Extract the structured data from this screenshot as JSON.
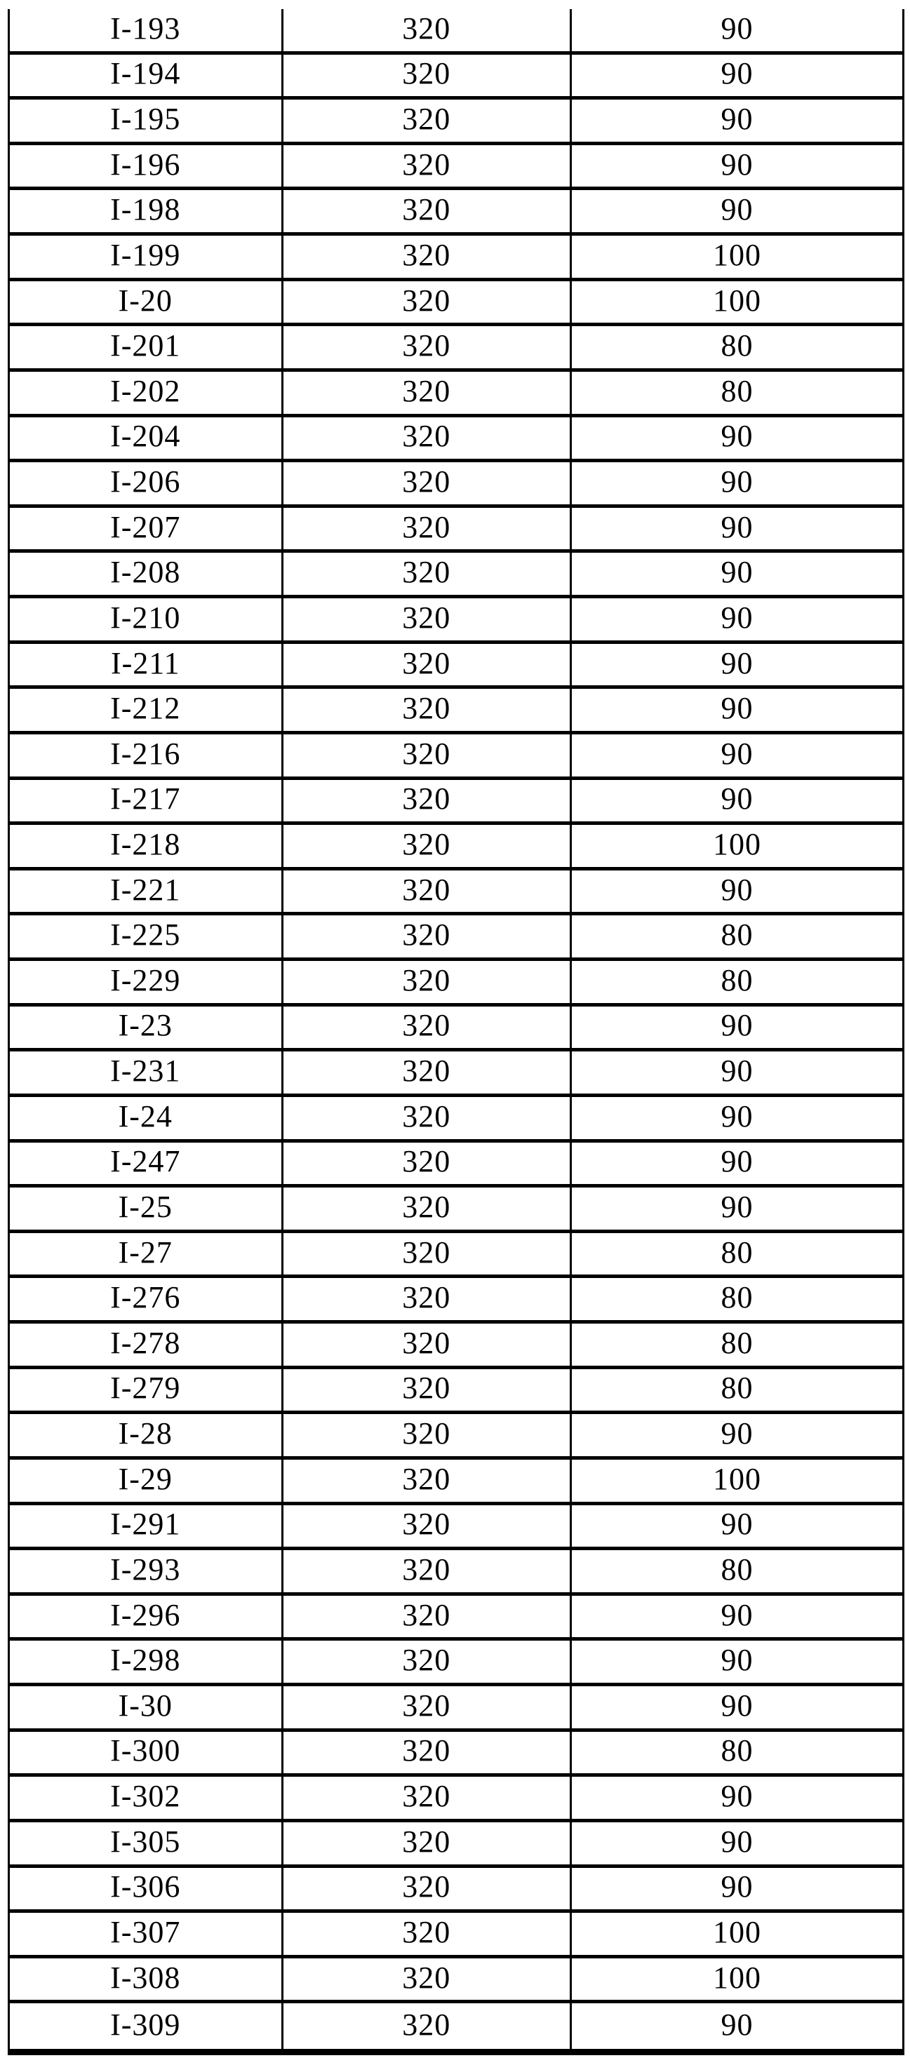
{
  "table": {
    "description_visible_text_only": "three-column table of compound identifiers and two numeric values, no header row visible",
    "rows": [
      [
        "I-193",
        "320",
        "90"
      ],
      [
        "I-194",
        "320",
        "90"
      ],
      [
        "I-195",
        "320",
        "90"
      ],
      [
        "I-196",
        "320",
        "90"
      ],
      [
        "I-198",
        "320",
        "90"
      ],
      [
        "I-199",
        "320",
        "100"
      ],
      [
        "I-20",
        "320",
        "100"
      ],
      [
        "I-201",
        "320",
        "80"
      ],
      [
        "I-202",
        "320",
        "80"
      ],
      [
        "I-204",
        "320",
        "90"
      ],
      [
        "I-206",
        "320",
        "90"
      ],
      [
        "I-207",
        "320",
        "90"
      ],
      [
        "I-208",
        "320",
        "90"
      ],
      [
        "I-210",
        "320",
        "90"
      ],
      [
        "I-211",
        "320",
        "90"
      ],
      [
        "I-212",
        "320",
        "90"
      ],
      [
        "I-216",
        "320",
        "90"
      ],
      [
        "I-217",
        "320",
        "90"
      ],
      [
        "I-218",
        "320",
        "100"
      ],
      [
        "I-221",
        "320",
        "90"
      ],
      [
        "I-225",
        "320",
        "80"
      ],
      [
        "I-229",
        "320",
        "80"
      ],
      [
        "I-23",
        "320",
        "90"
      ],
      [
        "I-231",
        "320",
        "90"
      ],
      [
        "I-24",
        "320",
        "90"
      ],
      [
        "I-247",
        "320",
        "90"
      ],
      [
        "I-25",
        "320",
        "90"
      ],
      [
        "I-27",
        "320",
        "80"
      ],
      [
        "I-276",
        "320",
        "80"
      ],
      [
        "I-278",
        "320",
        "80"
      ],
      [
        "I-279",
        "320",
        "80"
      ],
      [
        "I-28",
        "320",
        "90"
      ],
      [
        "I-29",
        "320",
        "100"
      ],
      [
        "I-291",
        "320",
        "90"
      ],
      [
        "I-293",
        "320",
        "80"
      ],
      [
        "I-296",
        "320",
        "90"
      ],
      [
        "I-298",
        "320",
        "90"
      ],
      [
        "I-30",
        "320",
        "90"
      ],
      [
        "I-300",
        "320",
        "80"
      ],
      [
        "I-302",
        "320",
        "90"
      ],
      [
        "I-305",
        "320",
        "90"
      ],
      [
        "I-306",
        "320",
        "90"
      ],
      [
        "I-307",
        "320",
        "100"
      ],
      [
        "I-308",
        "320",
        "100"
      ],
      [
        "I-309",
        "320",
        "90"
      ]
    ]
  },
  "colors": {
    "background": "#ffffff",
    "border": "#000000",
    "text": "#000000"
  }
}
